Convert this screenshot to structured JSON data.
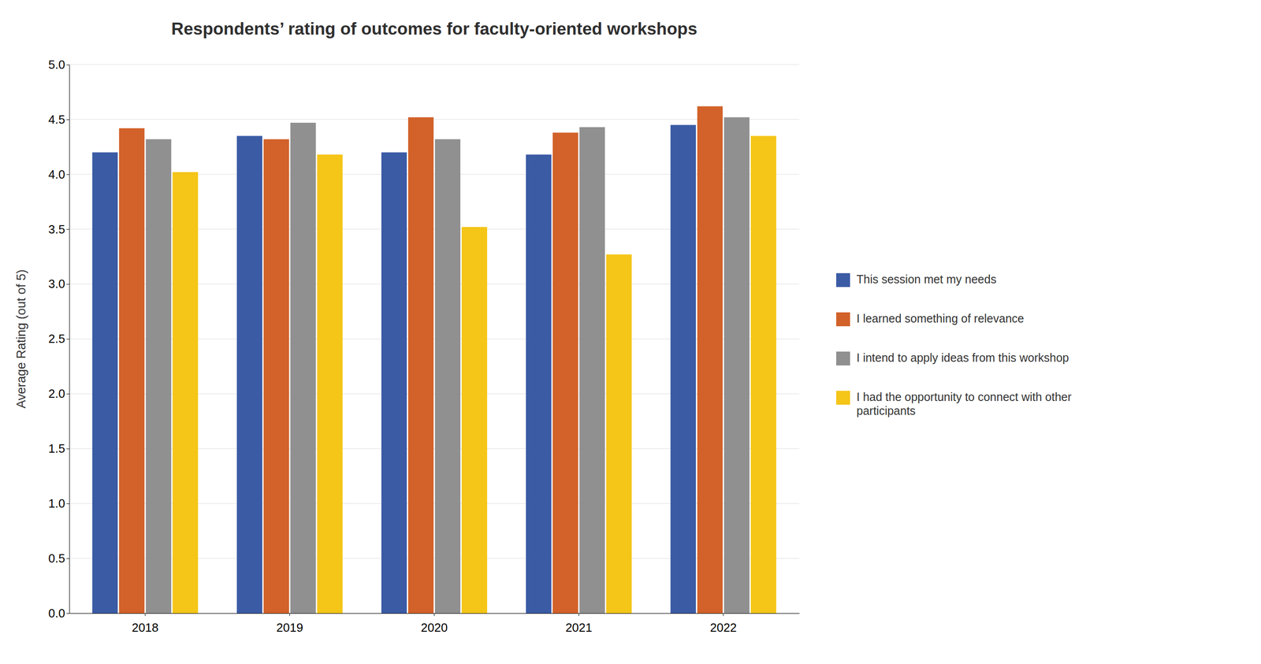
{
  "chart_data": {
    "type": "bar",
    "title": "Respondents’ rating of outcomes for faculty-oriented workshops",
    "y_label": "Average Rating (out of 5)",
    "categories": [
      "2018",
      "2019",
      "2020",
      "2021",
      "2022"
    ],
    "series": [
      {
        "name": "This session met my needs",
        "color": "#3B5BA5",
        "values": [
          4.2,
          4.35,
          4.2,
          4.18,
          4.45
        ]
      },
      {
        "name": "I learned something of relevance",
        "color": "#D2622A",
        "values": [
          4.42,
          4.32,
          4.52,
          4.38,
          4.62
        ]
      },
      {
        "name": "I intend to apply ideas from this workshop",
        "color": "#909090",
        "values": [
          4.32,
          4.47,
          4.32,
          4.43,
          4.52
        ]
      },
      {
        "name": "I had the opportunity to connect with other\nparticipants",
        "color": "#F5C518",
        "values": [
          4.02,
          4.18,
          3.52,
          3.27,
          4.35
        ]
      }
    ],
    "ylim": [
      0.0,
      5.0
    ],
    "yticks": [
      {
        "value": 0.0,
        "label": "0.0"
      },
      0.5,
      {
        "value": 1.0,
        "label": "1.0"
      },
      1.5,
      {
        "value": 2.0,
        "label": "2.0"
      },
      2.5,
      {
        "value": 3.0,
        "label": "3.0"
      },
      3.5,
      {
        "value": 4.0,
        "label": "4.0"
      },
      4.5,
      {
        "value": 5.0,
        "label": "5.0"
      }
    ],
    "grid": true,
    "legend": "right"
  }
}
